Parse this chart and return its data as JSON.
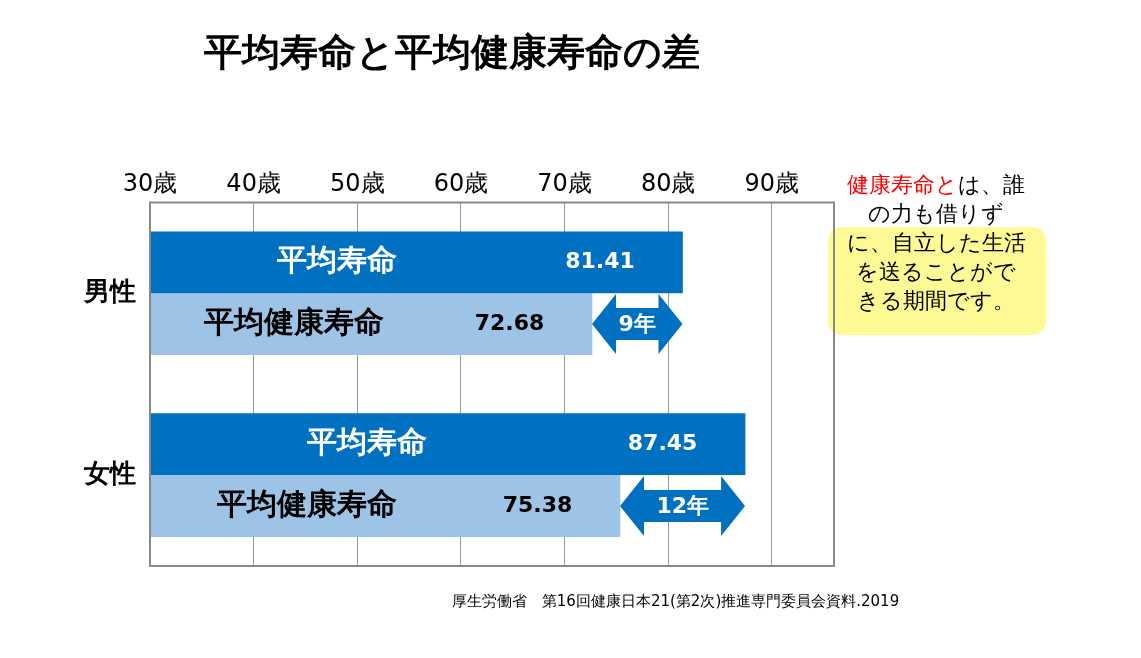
{
  "chart_data": {
    "type": "bar",
    "orientation": "horizontal",
    "title": "平均寿命と平均健康寿命の差",
    "categories": [
      "男性",
      "女性"
    ],
    "series": [
      {
        "name": "平均寿命",
        "color": "#0070c0",
        "values": [
          81.41,
          87.45
        ]
      },
      {
        "name": "平均健康寿命",
        "color": "#9dc3e6",
        "values": [
          72.68,
          75.38
        ]
      }
    ],
    "xlim": [
      30,
      96
    ],
    "xticks": [
      {
        "value": 30,
        "label": "30歳"
      },
      {
        "value": 40,
        "label": "40歳"
      },
      {
        "value": 50,
        "label": "50歳"
      },
      {
        "value": 60,
        "label": "60歳"
      },
      {
        "value": 70,
        "label": "70歳"
      },
      {
        "value": 80,
        "label": "80歳"
      },
      {
        "value": 90,
        "label": "90歳"
      }
    ],
    "grid": "x",
    "legend": false,
    "data_labels": true,
    "annotations": [
      {
        "text": "9年",
        "x": 77,
        "y": "男性"
      },
      {
        "text": "12年",
        "x": 81.4,
        "y": "女性"
      },
      "健康寿命と",
      "は、誰の力も借りずに、自立した生活を送ることができる期間です。",
      "厚生労働省　第16回健康日本21(第2次)推進専門委員会資料.2019"
    ]
  }
}
